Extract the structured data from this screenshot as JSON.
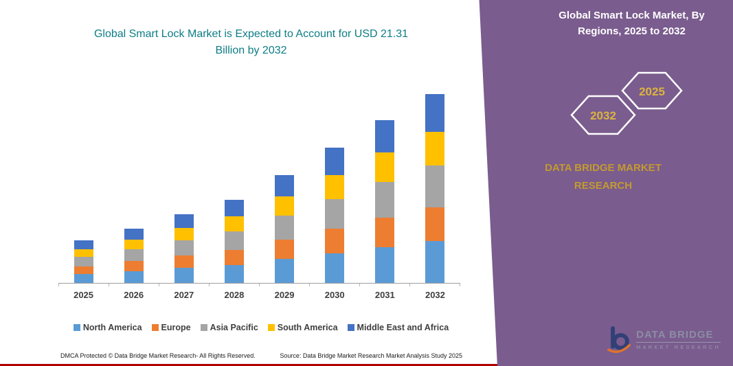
{
  "colors": {
    "teal": "#0d7d85",
    "purple": "#7a5c8e",
    "gold": "#c39a30",
    "hex_year_gold": "#dcb43e",
    "footer_line_red": "#b00000"
  },
  "left": {
    "title": "Global Smart Lock Market is Expected to Account for USD 21.31 Billion by 2032"
  },
  "panel": {
    "title": "Global Smart Lock Market, By Regions, 2025 to 2032",
    "hex_back_year": "2032",
    "hex_front_year": "2025",
    "brand_text": "DATA BRIDGE MARKET RESEARCH",
    "logo": {
      "line1": "DATA BRIDGE",
      "line2": "MARKET RESEARCH"
    }
  },
  "footer": {
    "dmca": "DMCA Protected © Data Bridge Market Research-  All Rights Reserved.",
    "source": "Source: Data Bridge Market Research  Market Analysis Study 2025"
  },
  "chart_data": {
    "type": "bar",
    "stacked": true,
    "title": "Global Smart Lock Market is Expected to Account for USD 21.31 Billion by 2032",
    "unit": "USD Billion",
    "categories": [
      "2025",
      "2026",
      "2027",
      "2028",
      "2029",
      "2030",
      "2031",
      "2032"
    ],
    "series": [
      {
        "name": "North America",
        "color": "#5B9BD5",
        "values": [
          1.05,
          1.35,
          1.7,
          2.05,
          2.7,
          3.35,
          4.05,
          4.7
        ]
      },
      {
        "name": "Europe",
        "color": "#ED7D31",
        "values": [
          0.85,
          1.1,
          1.4,
          1.7,
          2.2,
          2.75,
          3.3,
          3.85
        ]
      },
      {
        "name": "Asia Pacific",
        "color": "#A5A5A5",
        "values": [
          1.05,
          1.35,
          1.7,
          2.05,
          2.7,
          3.35,
          4.05,
          4.7
        ]
      },
      {
        "name": "South America",
        "color": "#FFC000",
        "values": [
          0.85,
          1.1,
          1.4,
          1.7,
          2.2,
          2.75,
          3.3,
          3.82
        ]
      },
      {
        "name": "Middle East and Africa",
        "color": "#4472C4",
        "values": [
          1.0,
          1.25,
          1.55,
          1.9,
          2.4,
          3.05,
          3.65,
          4.24
        ]
      }
    ],
    "totals": [
      4.8,
      6.15,
      7.75,
      9.4,
      12.2,
      15.25,
      18.35,
      21.31
    ],
    "ylim": [
      0,
      22
    ],
    "xlabel": "",
    "ylabel": "",
    "grid": false,
    "legend_position": "bottom"
  }
}
